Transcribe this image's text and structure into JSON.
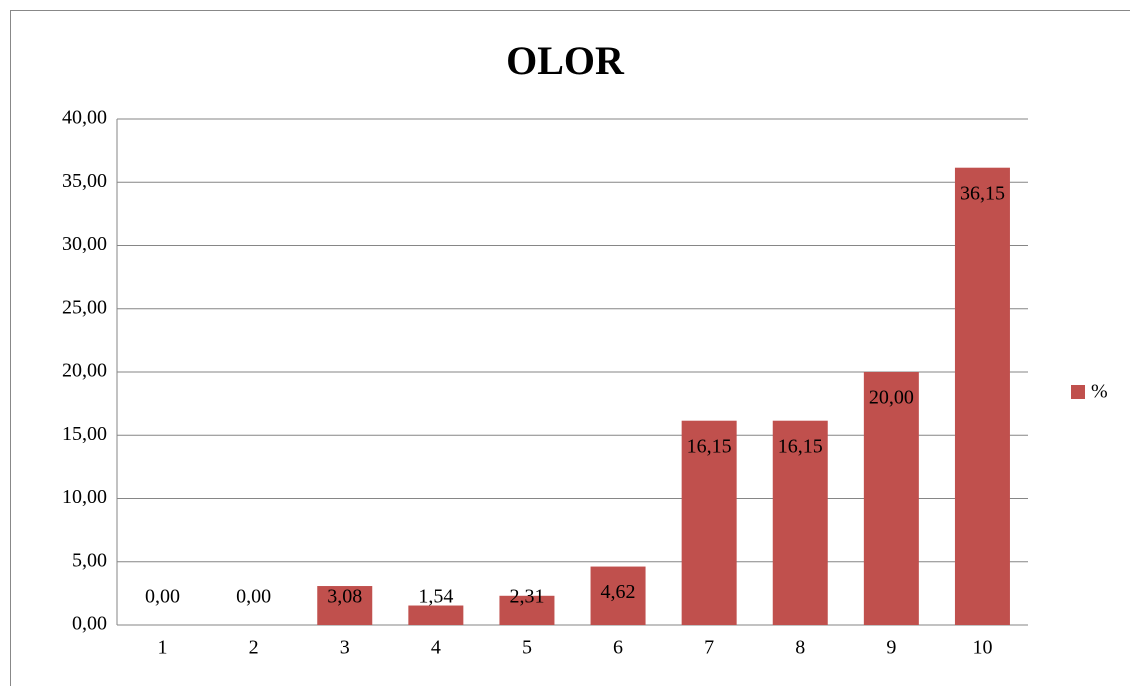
{
  "chart_data": {
    "type": "bar",
    "title": "OLOR",
    "categories": [
      "1",
      "2",
      "3",
      "4",
      "5",
      "6",
      "7",
      "8",
      "9",
      "10"
    ],
    "series": [
      {
        "name": "%",
        "color": "#c0504d",
        "values": [
          0,
          0,
          3.08,
          1.54,
          2.31,
          4.62,
          16.15,
          16.15,
          20,
          36.15
        ],
        "value_labels": [
          "0,00",
          "0,00",
          "3,08",
          "1,54",
          "2,31",
          "4,62",
          "16,15",
          "16,15",
          "20,00",
          "36,15"
        ]
      }
    ],
    "ylim": [
      0,
      40
    ],
    "yticks": [
      {
        "value": 0,
        "label": "0,00"
      },
      {
        "value": 5,
        "label": "5,00"
      },
      {
        "value": 10,
        "label": "10,00"
      },
      {
        "value": 15,
        "label": "15,00"
      },
      {
        "value": 20,
        "label": "20,00"
      },
      {
        "value": 25,
        "label": "25,00"
      },
      {
        "value": 30,
        "label": "30,00"
      },
      {
        "value": 35,
        "label": "35,00"
      },
      {
        "value": 40,
        "label": "40,00"
      }
    ],
    "grid": true,
    "legend": "right"
  }
}
